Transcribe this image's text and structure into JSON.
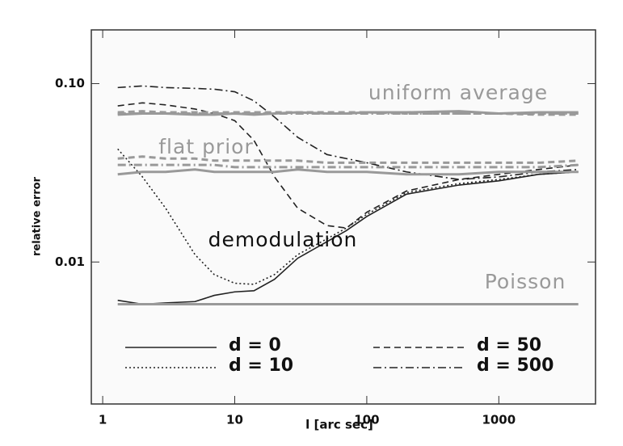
{
  "chart_data": {
    "type": "line",
    "xlabel": "l [arc sec]",
    "ylabel": "relative error",
    "xscale": "log",
    "yscale": "log",
    "xlim": [
      0.82,
      5400
    ],
    "ylim": [
      0.0016,
      0.2
    ],
    "xticks": [
      1,
      10,
      100,
      1000
    ],
    "yticks": [
      {
        "value": 0.01,
        "label": "0.01"
      },
      {
        "value": 0.1,
        "label": "0.10"
      }
    ],
    "x": [
      1.3,
      2,
      3,
      5,
      7,
      10,
      14,
      20,
      30,
      50,
      70,
      100,
      200,
      500,
      1000,
      2000,
      4000
    ],
    "annotations": [
      {
        "text": "uniform average",
        "color": "#999999"
      },
      {
        "text": "flat prior",
        "color": "#999999"
      },
      {
        "text": "demodulation",
        "color": "#111111"
      },
      {
        "text": "Poisson",
        "color": "#999999"
      }
    ],
    "series": [
      {
        "name": "d = 0",
        "color": "#222222",
        "dash": "solid",
        "values": [
          0.0061,
          0.0058,
          0.0059,
          0.006,
          0.0065,
          0.0068,
          0.0069,
          0.008,
          0.0105,
          0.013,
          0.015,
          0.018,
          0.024,
          0.027,
          0.0285,
          0.031,
          0.032
        ]
      },
      {
        "name": "d = 10",
        "color": "#222222",
        "dash": "dotted",
        "values": [
          0.043,
          0.03,
          0.02,
          0.011,
          0.0085,
          0.0076,
          0.0075,
          0.0085,
          0.011,
          0.0135,
          0.0155,
          0.0185,
          0.0245,
          0.0275,
          0.029,
          0.031,
          0.032
        ]
      },
      {
        "name": "d = 50",
        "color": "#222222",
        "dash": "dashed",
        "values": [
          0.075,
          0.078,
          0.076,
          0.072,
          0.068,
          0.062,
          0.048,
          0.03,
          0.02,
          0.016,
          0.0155,
          0.019,
          0.025,
          0.029,
          0.031,
          0.033,
          0.035
        ]
      },
      {
        "name": "d = 500",
        "color": "#222222",
        "dash": "dashdot",
        "values": [
          0.095,
          0.097,
          0.095,
          0.094,
          0.093,
          0.09,
          0.08,
          0.065,
          0.05,
          0.04,
          0.038,
          0.036,
          0.032,
          0.029,
          0.03,
          0.032,
          0.033
        ]
      },
      {
        "color": "#999999",
        "dash": "solid",
        "values": [
          0.067,
          0.068,
          0.068,
          0.067,
          0.067,
          0.068,
          0.067,
          0.068,
          0.069,
          0.068,
          0.068,
          0.069,
          0.069,
          0.07,
          0.068,
          0.069,
          0.069
        ]
      },
      {
        "color": "#999999",
        "dash": "dashed",
        "values": [
          0.069,
          0.07,
          0.069,
          0.069,
          0.069,
          0.069,
          0.069,
          0.069,
          0.069,
          0.069,
          0.069,
          0.069,
          0.068,
          0.068,
          0.068,
          0.067,
          0.067
        ]
      },
      {
        "color": "#999999",
        "dash": "dashdot",
        "values": [
          0.068,
          0.068,
          0.068,
          0.068,
          0.068,
          0.068,
          0.068,
          0.068,
          0.068,
          0.068,
          0.068,
          0.068,
          0.068,
          0.068,
          0.068,
          0.068,
          0.068
        ]
      },
      {
        "color": "#999999",
        "dash": "solid",
        "values": [
          0.031,
          0.032,
          0.032,
          0.033,
          0.032,
          0.032,
          0.032,
          0.032,
          0.033,
          0.032,
          0.032,
          0.032,
          0.031,
          0.031,
          0.032,
          0.032,
          0.032
        ]
      },
      {
        "color": "#999999",
        "dash": "dashed",
        "values": [
          0.038,
          0.039,
          0.038,
          0.038,
          0.037,
          0.037,
          0.037,
          0.037,
          0.037,
          0.036,
          0.036,
          0.036,
          0.036,
          0.036,
          0.036,
          0.036,
          0.037
        ]
      },
      {
        "color": "#999999",
        "dash": "dashdot",
        "values": [
          0.035,
          0.035,
          0.035,
          0.035,
          0.035,
          0.034,
          0.034,
          0.034,
          0.034,
          0.034,
          0.034,
          0.034,
          0.034,
          0.034,
          0.034,
          0.034,
          0.035
        ]
      },
      {
        "color": "#999999",
        "dash": "solid",
        "values": [
          0.0058,
          0.0058,
          0.0058,
          0.0058,
          0.0058,
          0.0058,
          0.0058,
          0.0058,
          0.0058,
          0.0058,
          0.0058,
          0.0058,
          0.0058,
          0.0058,
          0.0058,
          0.0058,
          0.0058
        ]
      }
    ]
  }
}
